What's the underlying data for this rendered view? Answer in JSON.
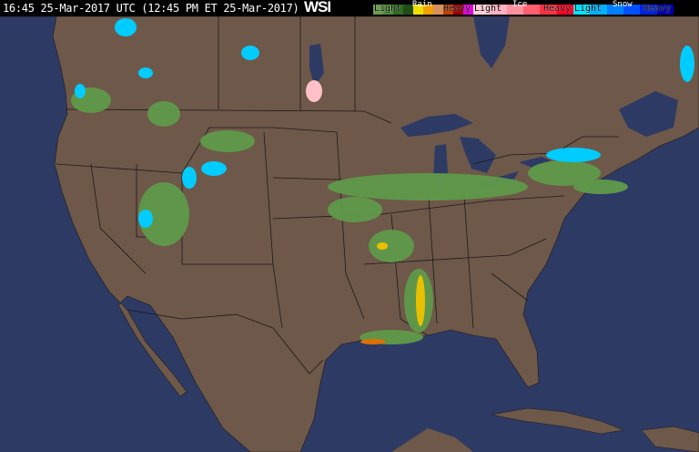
{
  "header": {
    "timestamp": "16:45 25-Mar-2017 UTC  (12:45 PM ET 25-Mar-2017)",
    "logo": "WSI"
  },
  "legend": {
    "rain": {
      "label": "Rain",
      "light": "Light",
      "heavy": "Heavy",
      "colors": [
        "#6a9a4e",
        "#4e8a3a",
        "#2e6a22",
        "#1e4e16",
        "#f0e000",
        "#f0a000",
        "#d89060",
        "#c04000",
        "#a00000",
        "#e000e0"
      ]
    },
    "ice": {
      "label": "Ice",
      "light": "Light",
      "heavy": "Heavy",
      "colors": [
        "#ffd0d8",
        "#ffb0c0",
        "#ff90a0",
        "#ff6070",
        "#ff3040",
        "#ff0020"
      ]
    },
    "snow": {
      "label": "Snow",
      "light": "Light",
      "heavy": "Heavy",
      "colors": [
        "#00e0ff",
        "#00b0ff",
        "#0080ff",
        "#0050ff",
        "#0020e0",
        "#0000b0"
      ]
    }
  },
  "map": {
    "ocean_color": "#2d3a64",
    "land_color": "#6e5849",
    "border_color": "#1a1a1a"
  }
}
